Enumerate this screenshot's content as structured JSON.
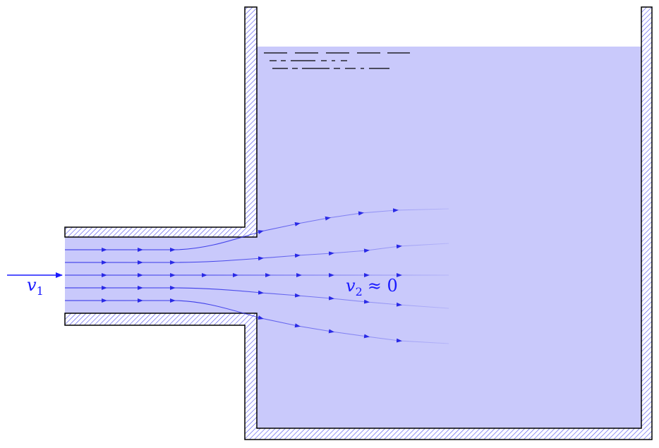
{
  "labels": {
    "inlet_velocity": {
      "symbol": "v",
      "subscript": "1"
    },
    "tank_velocity": {
      "symbol": "v",
      "subscript": "2",
      "relation": "≈ 0"
    }
  },
  "colors": {
    "water": "#c9c9fb",
    "streamline": "#2a2ae6",
    "label": "#1a1aff",
    "wall_outline": "#000000",
    "wall_hatch": "#4a4af0"
  },
  "icons": {
    "inlet_arrow": "arrow-right-icon",
    "water_surface": "water-surface-icon"
  }
}
